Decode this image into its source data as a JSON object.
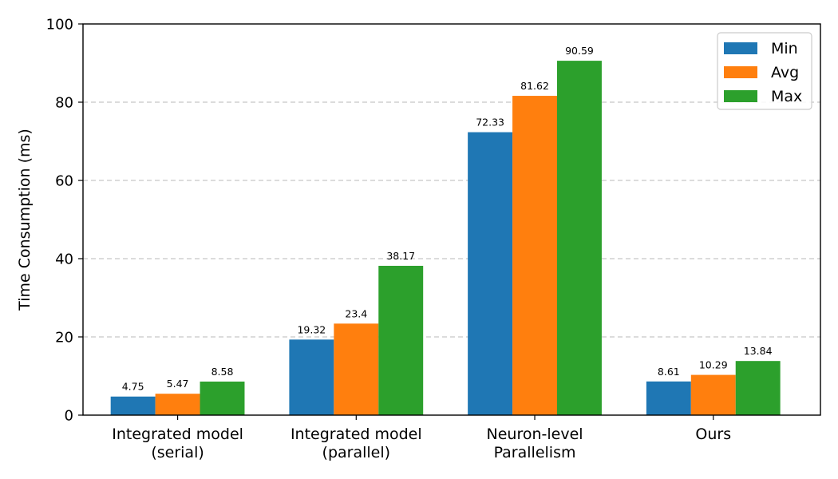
{
  "chart_data": {
    "type": "bar",
    "title": "",
    "xlabel": "",
    "ylabel": "Time Consumption (ms)",
    "ylim": [
      0,
      100
    ],
    "yticks": [
      0,
      20,
      40,
      60,
      80,
      100
    ],
    "grid": "y-dashed",
    "legend_position": "top-right",
    "categories": [
      [
        "Integrated model",
        "(serial)"
      ],
      [
        "Integrated model",
        "(parallel)"
      ],
      [
        "Neuron-level",
        "Parallelism"
      ],
      [
        "Ours"
      ]
    ],
    "series": [
      {
        "name": "Min",
        "color": "#1f77b4",
        "values": [
          4.75,
          19.32,
          72.33,
          8.61
        ],
        "labels": [
          "4.75",
          "19.32",
          "72.33",
          "8.61"
        ]
      },
      {
        "name": "Avg",
        "color": "#ff7f0e",
        "values": [
          5.47,
          23.4,
          81.62,
          10.29
        ],
        "labels": [
          "5.47",
          "23.4",
          "81.62",
          "10.29"
        ]
      },
      {
        "name": "Max",
        "color": "#2ca02c",
        "values": [
          8.58,
          38.17,
          90.59,
          13.84
        ],
        "labels": [
          "8.58",
          "38.17",
          "90.59",
          "13.84"
        ]
      }
    ]
  }
}
